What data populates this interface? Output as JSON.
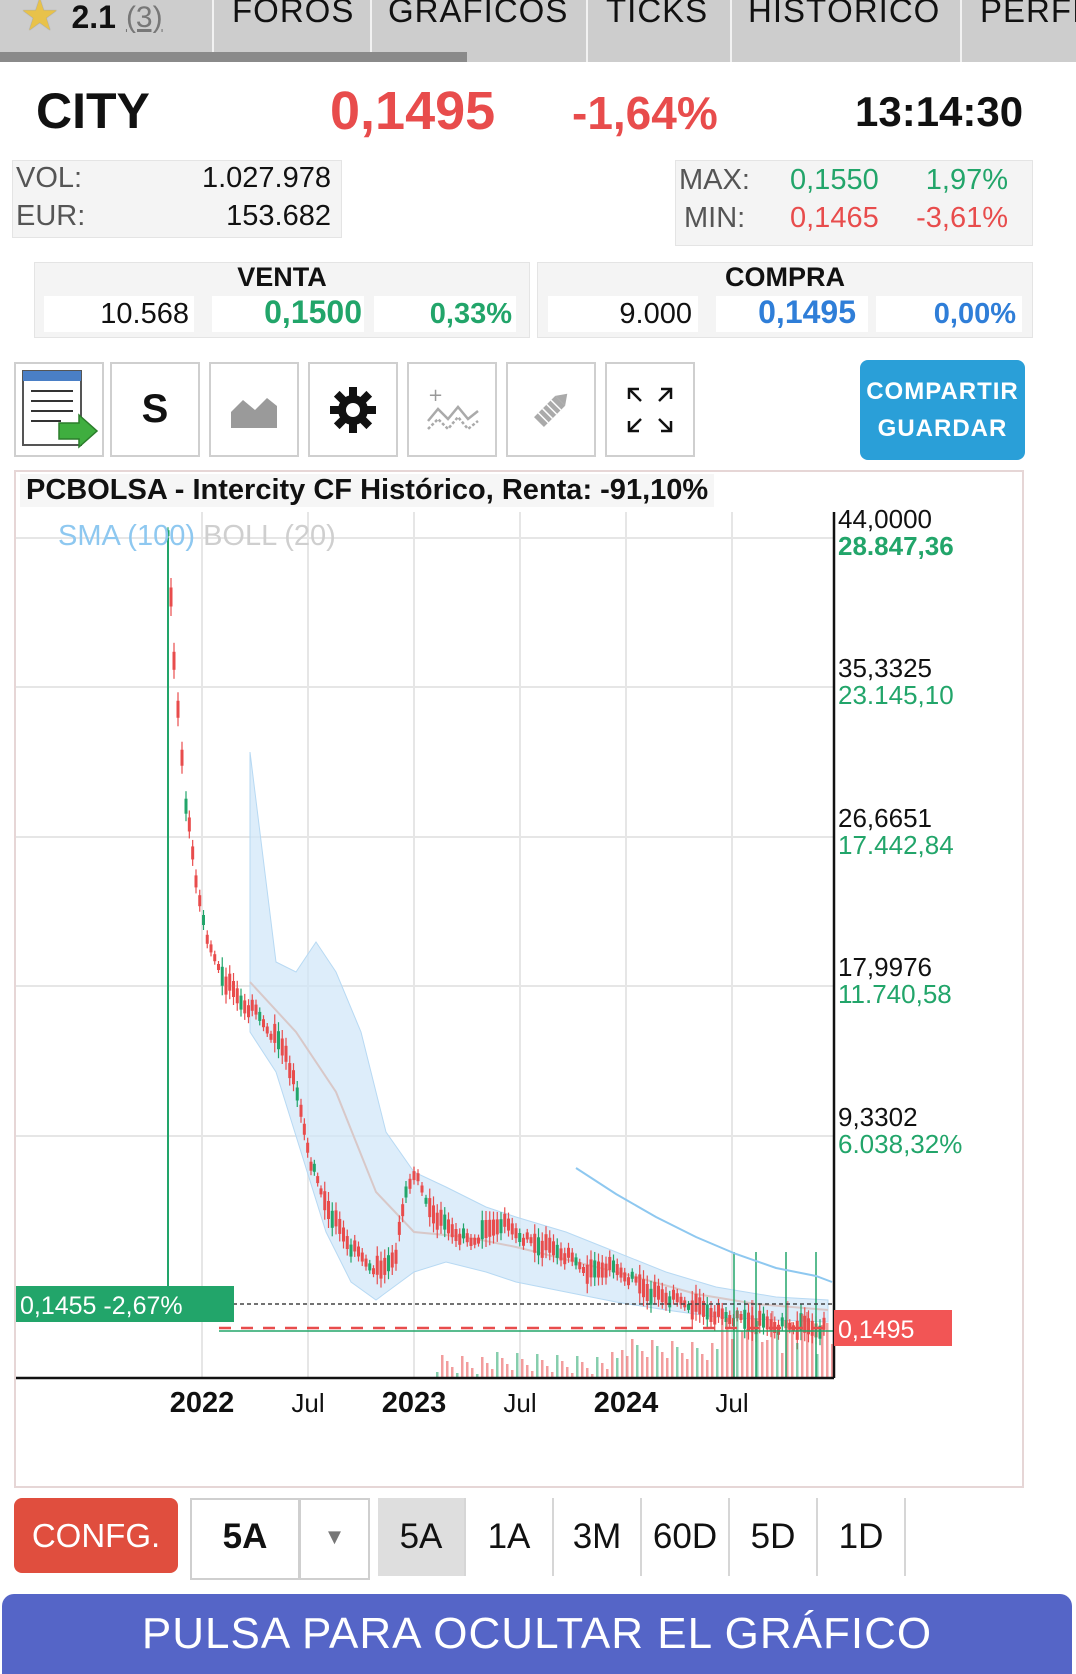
{
  "tabs": {
    "rating": "2.1",
    "rating_count": "(3)",
    "items": [
      "FOROS",
      "GRÁFICOS",
      "TICKS",
      "HISTÓRICO",
      "PERFIL"
    ]
  },
  "quote": {
    "ticker": "CITY",
    "price": "0,1495",
    "change": "-1,64%",
    "time": "13:14:30"
  },
  "volume": {
    "vol_label": "VOL:",
    "vol_value": "1.027.978",
    "eur_label": "EUR:",
    "eur_value": "153.682"
  },
  "range_stats": {
    "max_label": "MAX:",
    "max_value": "0,1550",
    "max_pct": "1,97%",
    "min_label": "MIN:",
    "min_value": "0,1465",
    "min_pct": "-3,61%"
  },
  "orders": {
    "sell_label": "VENTA",
    "sell_qty": "10.568",
    "sell_price": "0,1500",
    "sell_pct": "0,33%",
    "buy_label": "COMPRA",
    "buy_qty": "9.000",
    "buy_price": "0,1495",
    "buy_pct": "0,00%"
  },
  "toolbar": {
    "s_label": "S",
    "share_line1": "COMPARTIR",
    "share_line2": "GUARDAR",
    "icons": [
      "export-document-icon",
      "area-chart-icon",
      "gear-icon",
      "add-indicator-icon",
      "draw-pencil-icon",
      "fullscreen-icon"
    ]
  },
  "chart": {
    "title": "PCBOLSA - Intercity CF Histórico, Renta: -91,10%",
    "legend_sma": "SMA (100)",
    "legend_boll": "BOLL (20)",
    "y_ticks": [
      {
        "price": "44,0000",
        "pct": "28.847,36"
      },
      {
        "price": "35,3325",
        "pct": "23.145,10"
      },
      {
        "price": "26,6651",
        "pct": "17.442,84"
      },
      {
        "price": "17,9976",
        "pct": "11.740,58"
      },
      {
        "price": "9,3302",
        "pct": "6.038,32%"
      }
    ],
    "x_ticks": [
      "2022",
      "Jul",
      "2023",
      "Jul",
      "2024",
      "Jul"
    ],
    "cursor_label": "0,1455 -2,67%",
    "last_price_label": "0,1495",
    "colors": {
      "up": "#22a56a",
      "down": "#e84c4c",
      "sma": "#8ec8f0",
      "boll": "#cfe6f8"
    }
  },
  "bottom": {
    "config_label": "CONFG.",
    "period_selected": "5A",
    "ranges": [
      "5A",
      "1A",
      "3M",
      "60D",
      "5D",
      "1D"
    ],
    "hide_label": "PULSA PARA OCULTAR EL GRÁFICO"
  }
}
